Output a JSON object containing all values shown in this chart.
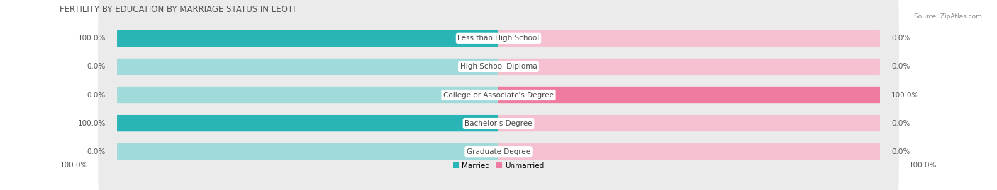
{
  "title": "FERTILITY BY EDUCATION BY MARRIAGE STATUS IN LEOTI",
  "source": "Source: ZipAtlas.com",
  "categories": [
    "Less than High School",
    "High School Diploma",
    "College or Associate's Degree",
    "Bachelor's Degree",
    "Graduate Degree"
  ],
  "married_values": [
    100.0,
    0.0,
    0.0,
    100.0,
    0.0
  ],
  "unmarried_values": [
    0.0,
    0.0,
    100.0,
    0.0,
    0.0
  ],
  "married_color": "#29b5b5",
  "unmarried_color": "#f07ba0",
  "married_light_color": "#a0dada",
  "unmarried_light_color": "#f5c0d0",
  "row_bg_color": "#ebebeb",
  "title_fontsize": 8.5,
  "label_fontsize": 7.5,
  "category_fontsize": 7.5,
  "footer_fontsize": 7.5
}
